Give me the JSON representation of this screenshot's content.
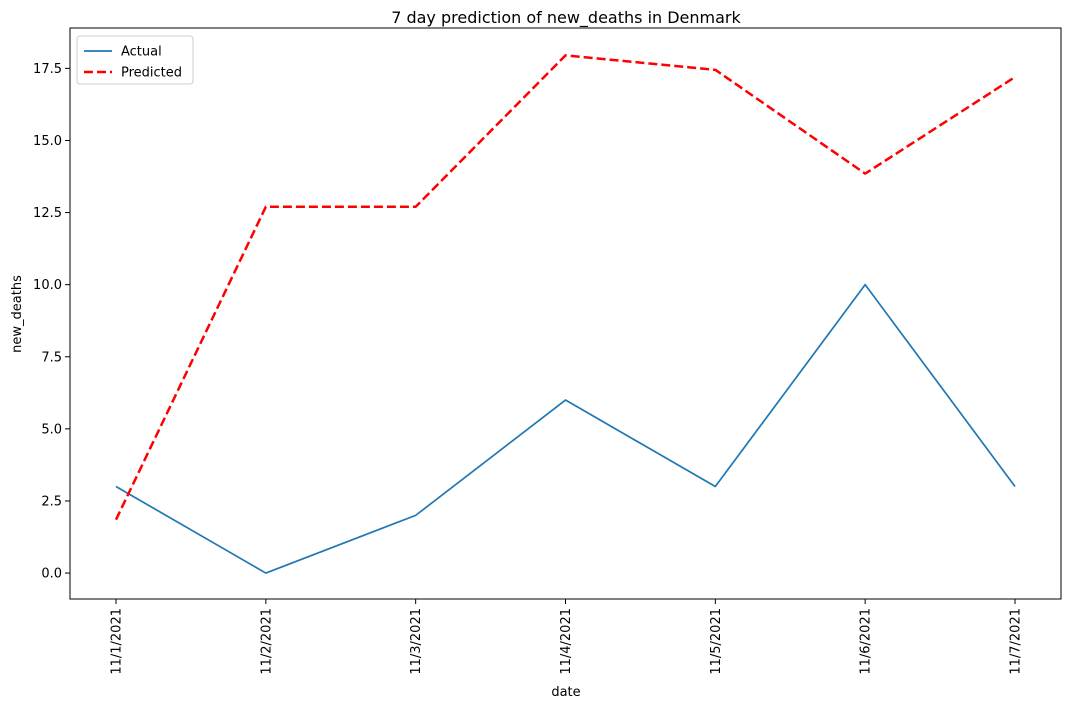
{
  "chart_data": {
    "type": "line",
    "title": "7 day prediction of new_deaths in Denmark",
    "xlabel": "date",
    "ylabel": "new_deaths",
    "categories": [
      "11/1/2021",
      "11/2/2021",
      "11/3/2021",
      "11/4/2021",
      "11/5/2021",
      "11/6/2021",
      "11/7/2021"
    ],
    "series": [
      {
        "name": "Actual",
        "values": [
          3,
          0,
          2,
          6,
          3,
          10,
          3
        ],
        "color": "#1f77b4",
        "style": "solid"
      },
      {
        "name": "Predicted",
        "values": [
          1.85,
          12.7,
          12.7,
          17.95,
          17.45,
          13.85,
          17.2
        ],
        "color": "#ff0000",
        "style": "dashed"
      }
    ],
    "ylim": [
      -0.9,
      18.9
    ],
    "yticks": [
      0.0,
      2.5,
      5.0,
      7.5,
      10.0,
      12.5,
      15.0,
      17.5
    ],
    "ytick_labels": [
      "0.0",
      "2.5",
      "5.0",
      "7.5",
      "10.0",
      "12.5",
      "15.0",
      "17.5"
    ],
    "grid": false,
    "legend_position": "top-left"
  }
}
